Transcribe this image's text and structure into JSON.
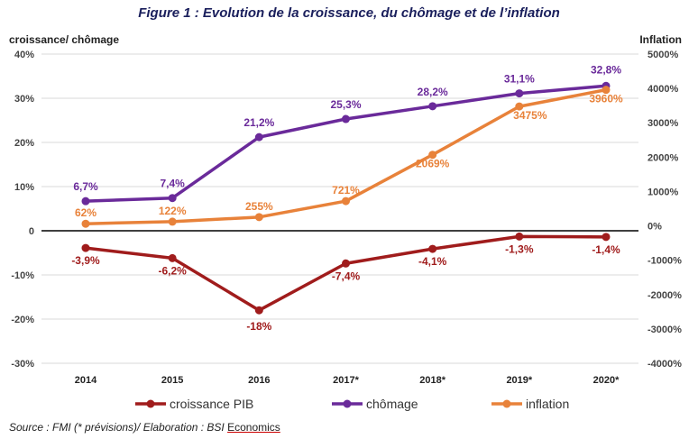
{
  "figure_title": "Figure 1 : Evolution de la croissance, du chômage et de l’inflation",
  "source": {
    "prefix": "Source : FMI (* prévisions)/ Elaboration : BSI ",
    "link": "Economics"
  },
  "chart_data": {
    "type": "line",
    "title": "Figure 1 : Evolution de la croissance, du chômage et de l’inflation",
    "categories": [
      "2014",
      "2015",
      "2016",
      "2017*",
      "2018*",
      "2019*",
      "2020*"
    ],
    "left_axis": {
      "label": "croissance/ chômage",
      "ylim": [
        -30,
        40
      ],
      "ticks": [
        40,
        30,
        20,
        10,
        0,
        -10,
        -20,
        -30
      ],
      "tick_labels": [
        "40%",
        "30%",
        "20%",
        "10%",
        "0",
        "-10%",
        "-20%",
        "-30%"
      ]
    },
    "right_axis": {
      "label": "Inflation",
      "ylim": [
        -4000,
        5000
      ],
      "ticks": [
        5000,
        4000,
        3000,
        2000,
        1000,
        0,
        -1000,
        -2000,
        -3000,
        -4000
      ],
      "tick_labels": [
        "5000%",
        "4000%",
        "3000%",
        "2000%",
        "1000%",
        "0%",
        "-1000%",
        "-2000%",
        "-3000%",
        "-4000%"
      ]
    },
    "grid": true,
    "legend_position": "bottom",
    "series": [
      {
        "name": "croissance PIB",
        "axis": "left",
        "color": "#a01c1c",
        "values": [
          -3.9,
          -6.2,
          -18,
          -7.4,
          -4.1,
          -1.3,
          -1.4
        ],
        "labels": [
          "-3,9%",
          "-6,2%",
          "-18%",
          "-7,4%",
          "-4,1%",
          "-1,3%",
          "-1,4%"
        ]
      },
      {
        "name": "chômage",
        "axis": "left",
        "color": "#6a2a9a",
        "values": [
          6.7,
          7.4,
          21.2,
          25.3,
          28.2,
          31.1,
          32.8
        ],
        "labels": [
          "6,7%",
          "7,4%",
          "21,2%",
          "25,3%",
          "28,2%",
          "31,1%",
          "32,8%"
        ]
      },
      {
        "name": "inflation",
        "axis": "right",
        "color": "#e8823a",
        "values": [
          62,
          122,
          255,
          721,
          2069,
          3475,
          3960
        ],
        "labels": [
          "62%",
          "122%",
          "255%",
          "721%",
          "2069%",
          "3475%",
          "3960%"
        ]
      }
    ]
  }
}
